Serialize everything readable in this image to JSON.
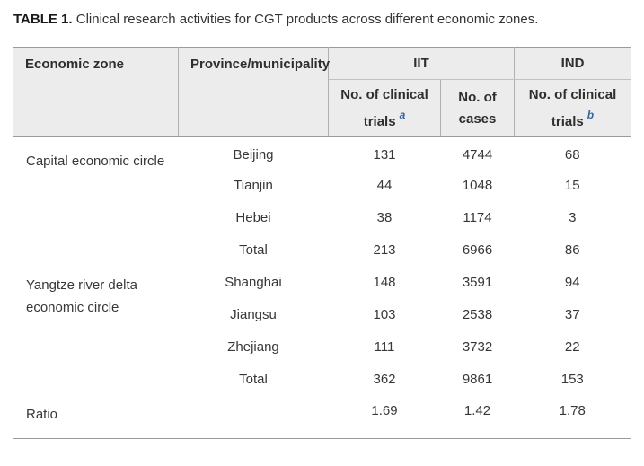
{
  "caption": {
    "label": "TABLE 1.",
    "text": " Clinical research activities for CGT products across different economic zones."
  },
  "colors": {
    "footnote-blue": "#35659f",
    "header-bg": "#ececec",
    "border-outer": "#9a9a9a",
    "border-inner": "#b0b0b0",
    "text": "#333333"
  },
  "table": {
    "header": {
      "economic_zone": "Economic zone",
      "province_municipality": "Province/municipality",
      "iit_group": "IIT",
      "ind_group": "IND",
      "iit_trials_label": "No. of clinical trials",
      "iit_trials_footnote": "a",
      "iit_cases_label": "No. of cases",
      "ind_trials_label": "No. of clinical trials",
      "ind_trials_footnote": "b"
    },
    "rows": [
      {
        "zone": "Capital economic circle",
        "province": "Beijing",
        "iit_trials": "131",
        "iit_cases": "4744",
        "ind_trials": "68"
      },
      {
        "zone": "",
        "province": "Tianjin",
        "iit_trials": "44",
        "iit_cases": "1048",
        "ind_trials": "15"
      },
      {
        "zone": "",
        "province": "Hebei",
        "iit_trials": "38",
        "iit_cases": "1174",
        "ind_trials": "3"
      },
      {
        "zone": "",
        "province": "Total",
        "iit_trials": "213",
        "iit_cases": "6966",
        "ind_trials": "86"
      },
      {
        "zone": "Yangtze river delta economic circle",
        "province": "Shanghai",
        "iit_trials": "148",
        "iit_cases": "3591",
        "ind_trials": "94"
      },
      {
        "zone": "",
        "province": "Jiangsu",
        "iit_trials": "103",
        "iit_cases": "2538",
        "ind_trials": "37"
      },
      {
        "zone": "",
        "province": "Zhejiang",
        "iit_trials": "111",
        "iit_cases": "3732",
        "ind_trials": "22"
      },
      {
        "zone": "",
        "province": "Total",
        "iit_trials": "362",
        "iit_cases": "9861",
        "ind_trials": "153"
      },
      {
        "zone": "Ratio",
        "province": "",
        "iit_trials": "1.69",
        "iit_cases": "1.42",
        "ind_trials": "1.78"
      }
    ]
  }
}
